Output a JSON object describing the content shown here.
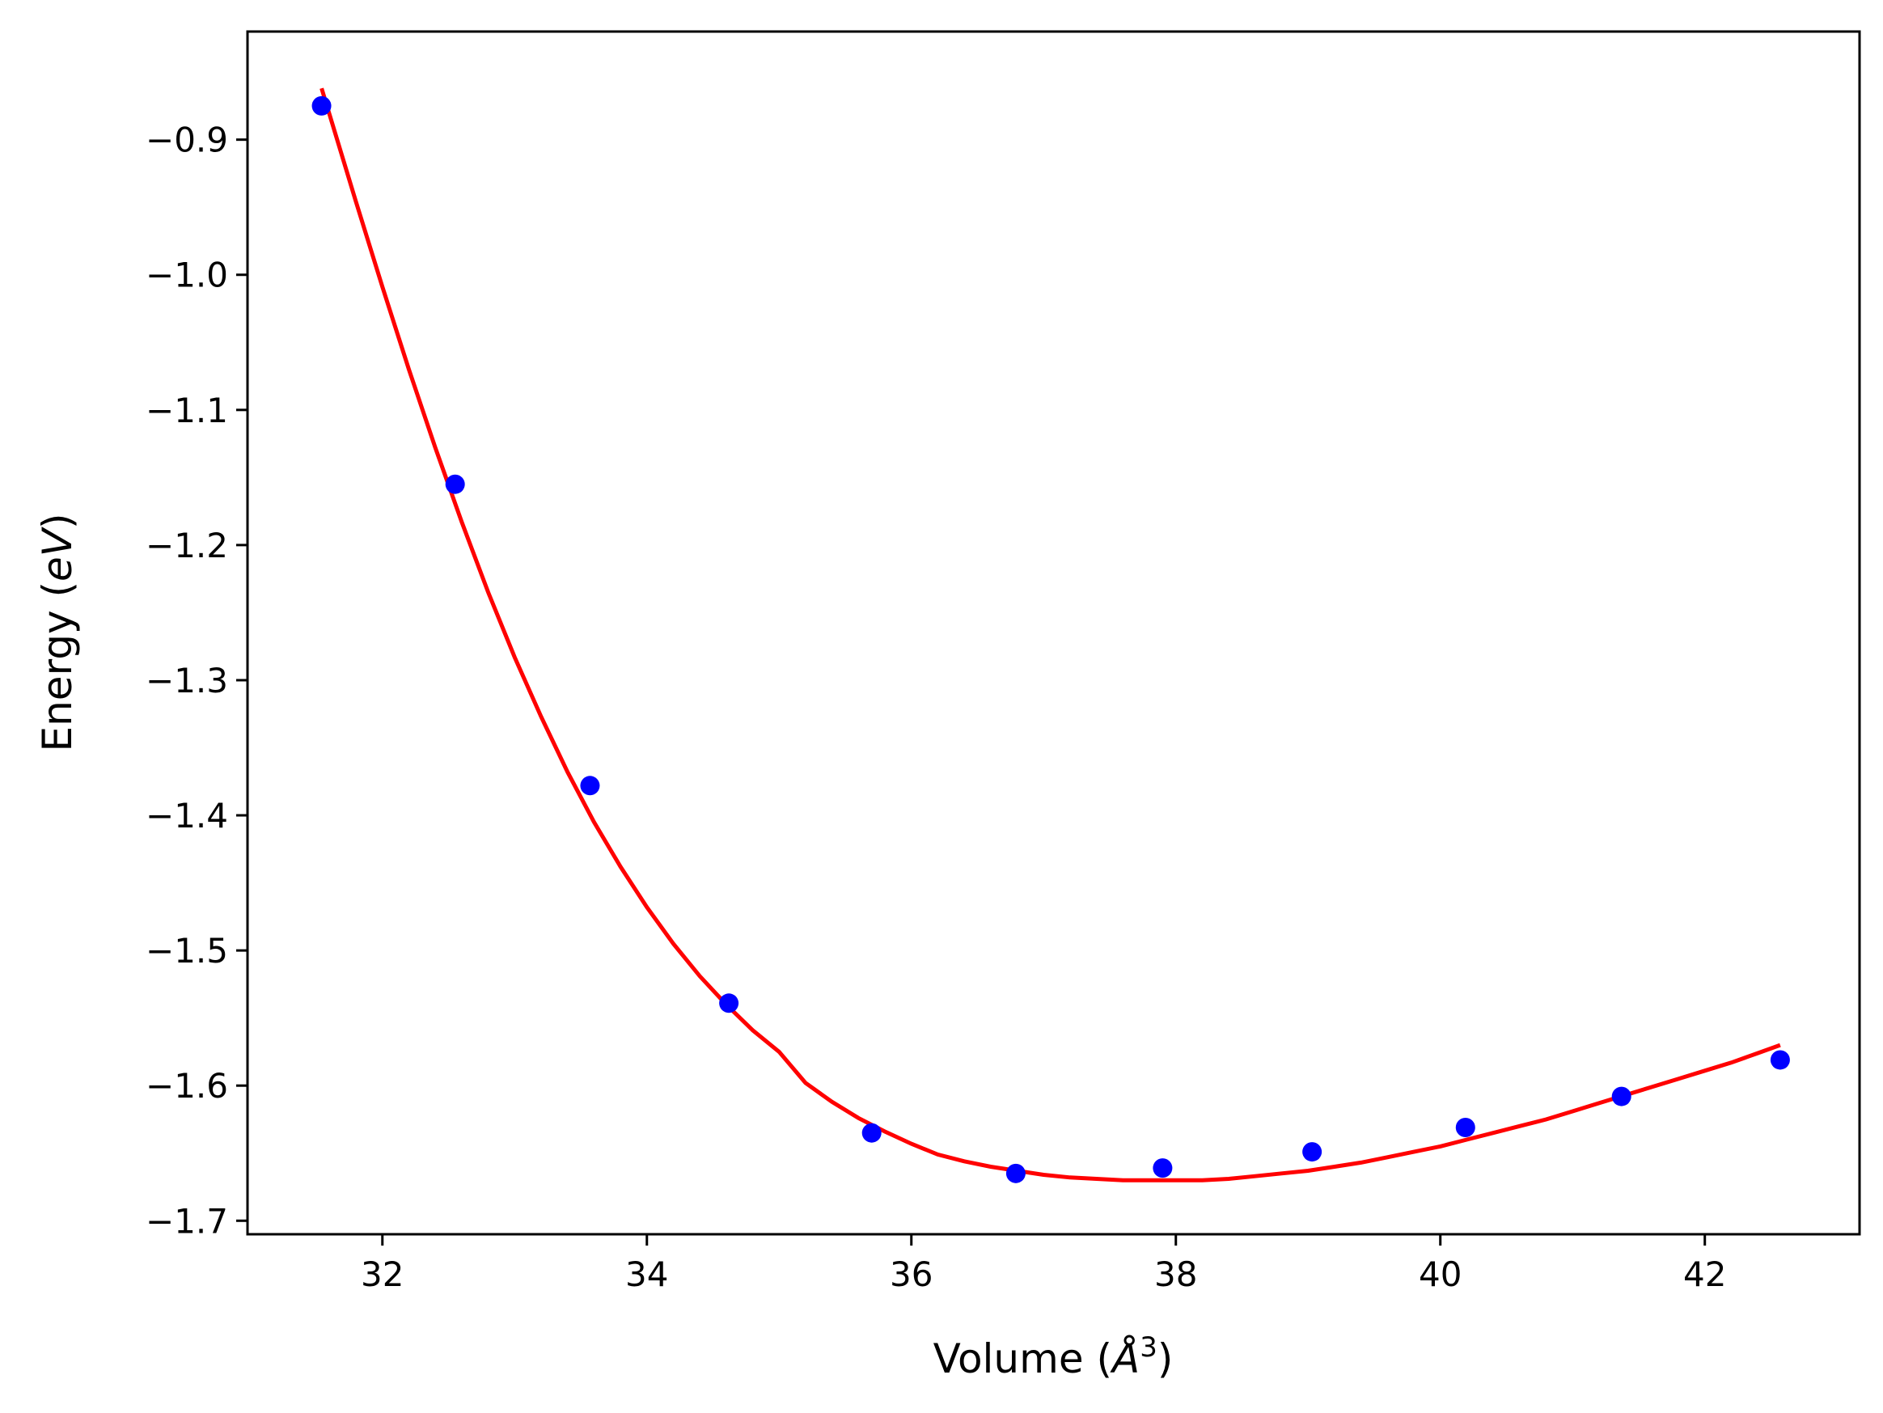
{
  "chart_data": {
    "type": "scatter",
    "title": "",
    "xlabel": "Volume ($\\AA^3$)",
    "ylabel": "Energy ($eV$)",
    "xlabel_parts": [
      "Volume (",
      "Å",
      "3",
      ")"
    ],
    "ylabel_parts": [
      "Energy (",
      "eV",
      ")"
    ],
    "xlim": [
      30.98,
      43.17
    ],
    "ylim": [
      -1.71,
      -0.82
    ],
    "xticks": [
      32,
      34,
      36,
      38,
      40,
      42
    ],
    "xtick_labels": [
      "32",
      "34",
      "36",
      "38",
      "40",
      "42"
    ],
    "yticks": [
      -0.9,
      -1.0,
      -1.1,
      -1.2,
      -1.3,
      -1.4,
      -1.5,
      -1.6,
      -1.7
    ],
    "ytick_labels": [
      "−0.9",
      "−1.0",
      "−1.1",
      "−1.2",
      "−1.3",
      "−1.4",
      "−1.5",
      "−1.6",
      "−1.7"
    ],
    "grid": false,
    "series": [
      {
        "kind": "scatter",
        "color": "#0000ff",
        "x": [
          31.54,
          32.55,
          33.57,
          34.62,
          35.7,
          36.79,
          37.9,
          39.03,
          40.19,
          41.37,
          42.57
        ],
        "y": [
          -0.875,
          -1.155,
          -1.378,
          -1.539,
          -1.635,
          -1.665,
          -1.661,
          -1.649,
          -1.631,
          -1.608,
          -1.581
        ]
      },
      {
        "kind": "line",
        "color": "#ff0000",
        "x": [
          31.54,
          31.8,
          32.0,
          32.2,
          32.4,
          32.6,
          32.8,
          33.0,
          33.2,
          33.4,
          33.6,
          33.8,
          34.0,
          34.2,
          34.4,
          34.6,
          34.8,
          35.0,
          35.2,
          35.4,
          35.6,
          35.8,
          36.0,
          36.2,
          36.4,
          36.6,
          36.8,
          37.0,
          37.2,
          37.4,
          37.6,
          37.8,
          38.0,
          38.2,
          38.4,
          38.6,
          38.8,
          39.0,
          39.2,
          39.4,
          39.6,
          39.8,
          40.0,
          40.2,
          40.4,
          40.6,
          40.8,
          41.0,
          41.2,
          41.4,
          41.6,
          41.8,
          42.0,
          42.2,
          42.4,
          42.57
        ],
        "y": [
          -0.862,
          -0.946,
          -1.009,
          -1.07,
          -1.128,
          -1.183,
          -1.235,
          -1.283,
          -1.327,
          -1.368,
          -1.405,
          -1.438,
          -1.468,
          -1.495,
          -1.519,
          -1.54,
          -1.559,
          -1.575,
          -1.598,
          -1.612,
          -1.624,
          -1.634,
          -1.643,
          -1.651,
          -1.656,
          -1.66,
          -1.663,
          -1.666,
          -1.668,
          -1.669,
          -1.67,
          -1.67,
          -1.67,
          -1.67,
          -1.669,
          -1.667,
          -1.665,
          -1.663,
          -1.66,
          -1.657,
          -1.653,
          -1.649,
          -1.645,
          -1.64,
          -1.635,
          -1.63,
          -1.625,
          -1.619,
          -1.613,
          -1.607,
          -1.601,
          -1.595,
          -1.589,
          -1.583,
          -1.576,
          -1.57
        ]
      }
    ]
  }
}
